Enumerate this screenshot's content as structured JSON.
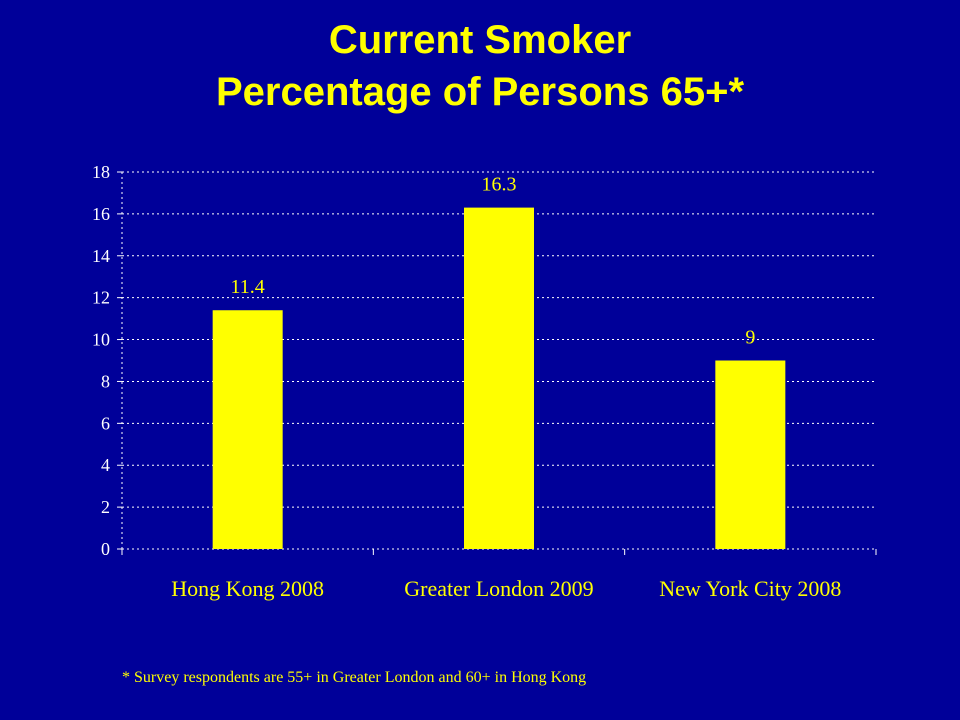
{
  "slide": {
    "title_line1": "Current Smoker",
    "title_line2": "Percentage of Persons 65+*",
    "footnote": "* Survey respondents are 55+ in Greater London and 60+ in Hong Kong"
  },
  "colors": {
    "background": "#000099",
    "bar": "#FFFF00",
    "text": "#FFFF00",
    "axis_label": "#FFFFFF",
    "grid": "#FFFFFF"
  },
  "chart_data": {
    "type": "bar",
    "categories": [
      "Hong Kong 2008",
      "Greater London 2009",
      "New York City 2008"
    ],
    "values": [
      11.4,
      16.3,
      9
    ],
    "data_labels": [
      "11.4",
      "16.3",
      "9"
    ],
    "ylim": [
      0,
      18
    ],
    "y_ticks": [
      "0",
      "2",
      "4",
      "6",
      "8",
      "10",
      "12",
      "14",
      "16",
      "18"
    ],
    "grid": "horizontal dotted",
    "legend": "none"
  }
}
